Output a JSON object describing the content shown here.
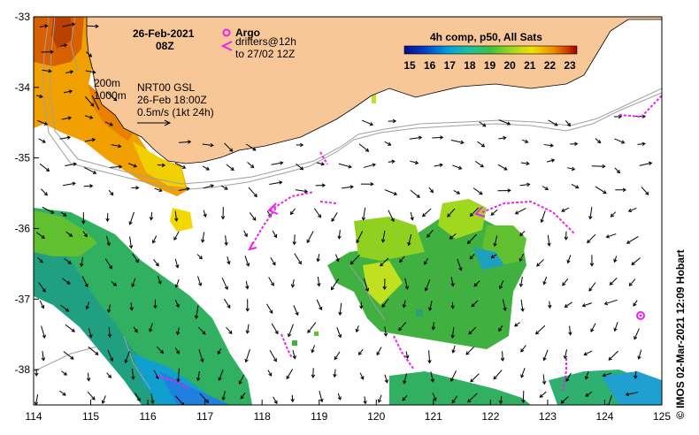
{
  "map": {
    "date": "26-Feb-2021",
    "time": "08Z",
    "colorbar": {
      "title": "4h comp, p50, All Sats",
      "ticks": [
        "15",
        "16",
        "17",
        "18",
        "19",
        "20",
        "21",
        "22",
        "23"
      ],
      "colors": [
        "#0a0a8c",
        "#0040c8",
        "#00a0e0",
        "#20c0a0",
        "#40c040",
        "#a0d820",
        "#f0e000",
        "#f09000",
        "#d04000",
        "#a00000"
      ]
    },
    "legend": {
      "argo_label": "Argo",
      "drifters_line1": "drifters@12h",
      "drifters_line2": "to 27/02 12Z",
      "depth1": "200m",
      "depth2": "1000m",
      "current_source": "NRT00 GSL",
      "current_time": "26-Feb 18:00Z",
      "current_scale": "0.5m/s (1kt 24h)"
    },
    "axes": {
      "x_ticks": [
        "114",
        "115",
        "116",
        "117",
        "118",
        "119",
        "120",
        "121",
        "122",
        "123",
        "124",
        "125"
      ],
      "y_ticks": [
        "-33",
        "-34",
        "-35",
        "-36",
        "-37",
        "-38"
      ],
      "xlim": [
        114,
        125
      ],
      "ylim": [
        -38.5,
        -33
      ]
    },
    "credit": "© IMOS 02-Mar-2021 12:09 Hobart",
    "colors": {
      "land": "#f7c797",
      "drifter": "#ee22ee",
      "contour": "#a0a0a0"
    }
  }
}
